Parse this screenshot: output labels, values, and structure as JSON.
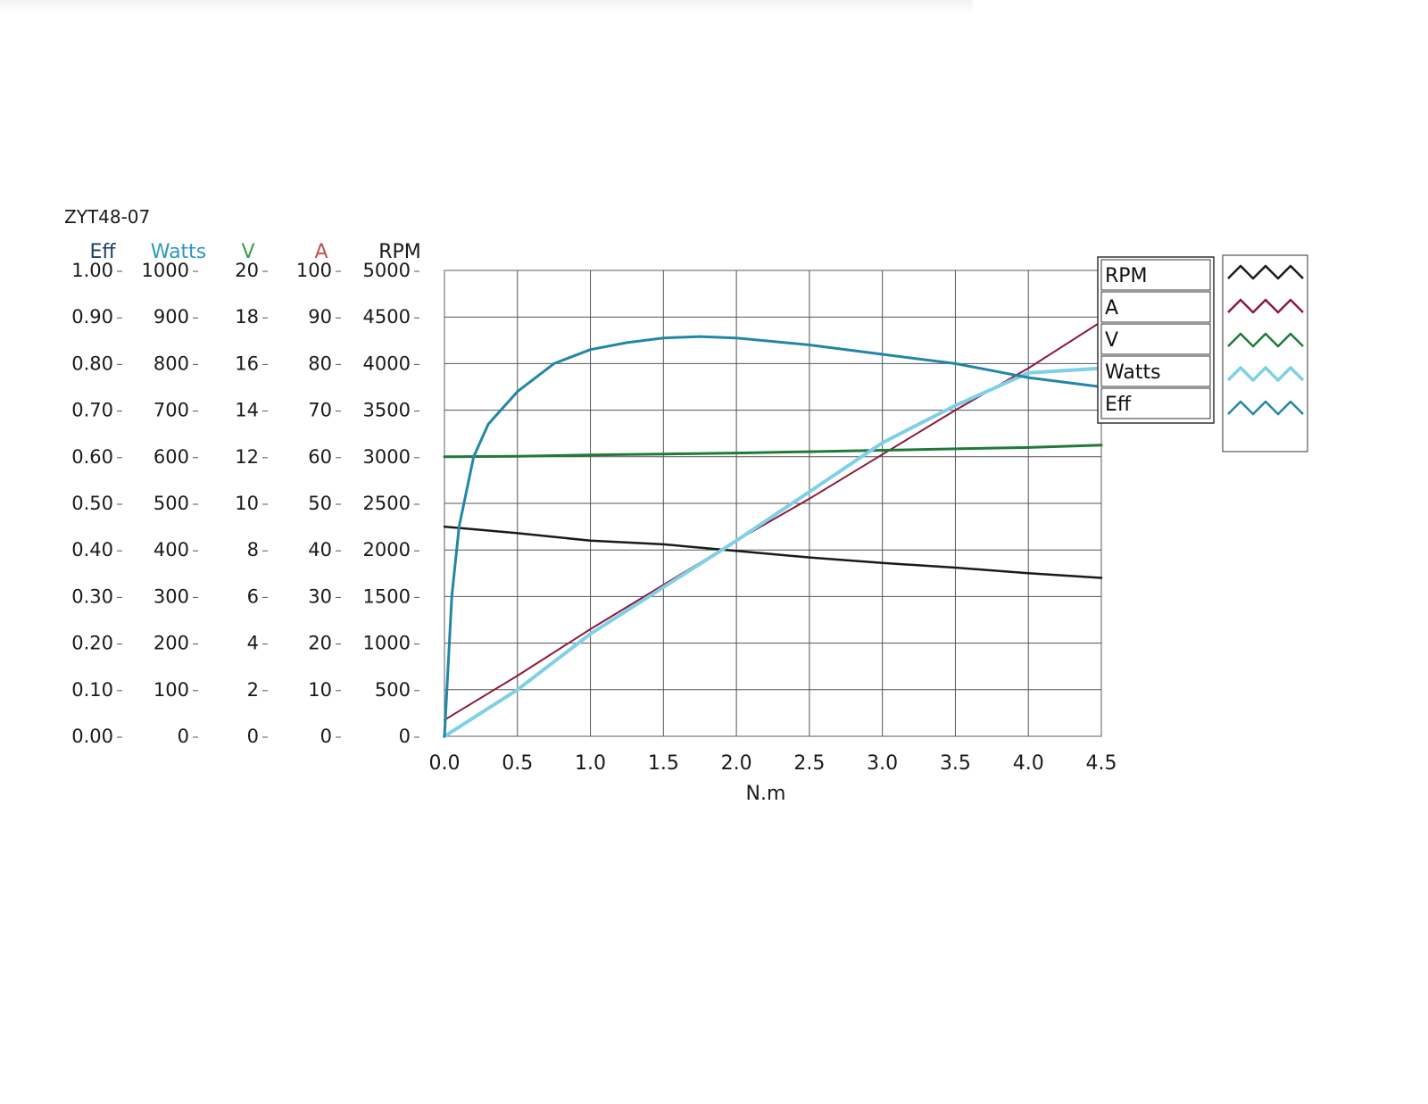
{
  "chart_data": {
    "type": "line",
    "title": "ZYT48-07",
    "xlabel": "N.m",
    "xlim": [
      0,
      4.5
    ],
    "x_ticks": [
      "0.0",
      "0.5",
      "1.0",
      "1.5",
      "2.0",
      "2.5",
      "3.0",
      "3.5",
      "4.0",
      "4.5"
    ],
    "grid": true,
    "legend_position": "right",
    "axes": [
      {
        "name": "Eff",
        "color": "#1e3f66",
        "range": [
          0,
          1
        ],
        "ticks": [
          "0.00",
          "0.10",
          "0.20",
          "0.30",
          "0.40",
          "0.50",
          "0.60",
          "0.70",
          "0.80",
          "0.90",
          "1.00"
        ]
      },
      {
        "name": "Watts",
        "color": "#2e97be",
        "range": [
          0,
          1000
        ],
        "ticks": [
          "0",
          "100",
          "200",
          "300",
          "400",
          "500",
          "600",
          "700",
          "800",
          "900",
          "1000"
        ]
      },
      {
        "name": "V",
        "color": "#3f9a4a",
        "range": [
          0,
          20
        ],
        "ticks": [
          "0",
          "2",
          "4",
          "6",
          "8",
          "10",
          "12",
          "14",
          "16",
          "18",
          "20"
        ]
      },
      {
        "name": "A",
        "color": "#c0504d",
        "range": [
          0,
          100
        ],
        "ticks": [
          "0",
          "10",
          "20",
          "30",
          "40",
          "50",
          "60",
          "70",
          "80",
          "90",
          "100"
        ]
      },
      {
        "name": "RPM",
        "color": "#1a1a1a",
        "range": [
          0,
          5000
        ],
        "ticks": [
          "0",
          "500",
          "1000",
          "1500",
          "2000",
          "2500",
          "3000",
          "3500",
          "4000",
          "4500",
          "5000"
        ]
      }
    ],
    "series": [
      {
        "name": "RPM",
        "axis": 4,
        "color": "#1a1a1a",
        "width": 2.5,
        "x": [
          0,
          0.5,
          1.0,
          1.5,
          2.0,
          2.5,
          3.0,
          3.5,
          4.0,
          4.5
        ],
        "y": [
          2250,
          2180,
          2100,
          2060,
          1990,
          1920,
          1860,
          1810,
          1750,
          1700
        ]
      },
      {
        "name": "A",
        "axis": 3,
        "color": "#8b1a3a",
        "width": 2,
        "x": [
          0,
          0.5,
          1.0,
          1.5,
          2.0,
          2.5,
          3.0,
          3.5,
          4.0,
          4.5
        ],
        "y": [
          3.5,
          13,
          23,
          32.5,
          42,
          51,
          60.5,
          70,
          79,
          89
        ]
      },
      {
        "name": "V",
        "axis": 2,
        "color": "#1f7a3a",
        "width": 3,
        "x": [
          0,
          0.5,
          1.0,
          1.5,
          2.0,
          2.5,
          3.0,
          3.5,
          4.0,
          4.5
        ],
        "y": [
          12.0,
          12.02,
          12.08,
          12.12,
          12.16,
          12.22,
          12.28,
          12.34,
          12.4,
          12.5
        ]
      },
      {
        "name": "Watts",
        "axis": 1,
        "color": "#7fd0e6",
        "width": 4,
        "x": [
          0,
          0.5,
          1.0,
          1.5,
          2.0,
          2.5,
          3.0,
          3.5,
          4.0,
          4.5
        ],
        "y": [
          0,
          100,
          220,
          320,
          420,
          525,
          630,
          710,
          780,
          790
        ]
      },
      {
        "name": "Eff",
        "axis": 0,
        "color": "#2286a8",
        "width": 3,
        "x": [
          0,
          0.05,
          0.1,
          0.2,
          0.3,
          0.5,
          0.75,
          1.0,
          1.25,
          1.5,
          1.75,
          2.0,
          2.5,
          3.0,
          3.5,
          4.0,
          4.5
        ],
        "y": [
          0,
          0.3,
          0.45,
          0.6,
          0.67,
          0.74,
          0.8,
          0.83,
          0.845,
          0.855,
          0.858,
          0.855,
          0.84,
          0.82,
          0.8,
          0.77,
          0.75
        ]
      }
    ],
    "legend": [
      "RPM",
      "A",
      "V",
      "Watts",
      "Eff"
    ]
  }
}
